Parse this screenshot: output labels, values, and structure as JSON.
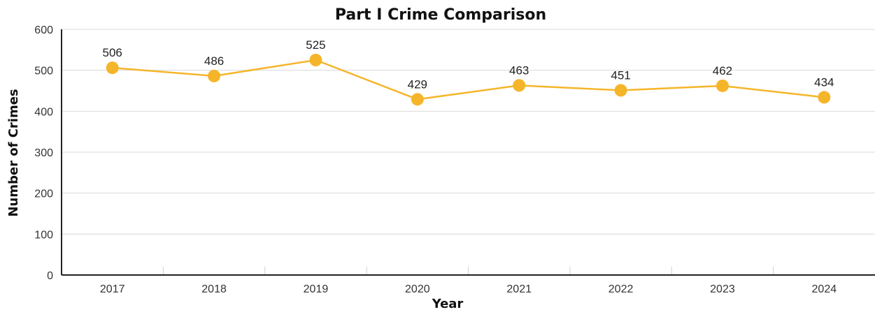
{
  "chart_data": {
    "type": "line",
    "title": "Part I Crime Comparison",
    "xlabel": "Year",
    "ylabel": "Number of Crimes",
    "categories": [
      "2017",
      "2018",
      "2019",
      "2020",
      "2021",
      "2022",
      "2023",
      "2024"
    ],
    "series": [
      {
        "values": [
          506,
          486,
          525,
          429,
          463,
          451,
          462,
          434
        ]
      }
    ],
    "data_labels": [
      "506",
      "486",
      "525",
      "429",
      "463",
      "451",
      "462",
      "434"
    ],
    "ylim": [
      0,
      600
    ],
    "yticks": [
      "0",
      "100",
      "200",
      "300",
      "400",
      "500",
      "600"
    ],
    "grid": true,
    "legend": "none",
    "colors": {
      "line": "#f5b52a",
      "marker": "#f5b52a"
    }
  }
}
